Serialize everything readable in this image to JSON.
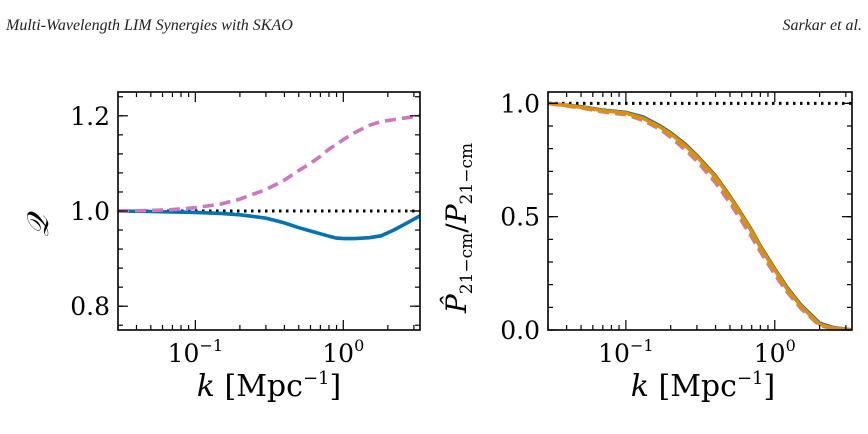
{
  "header": {
    "left": "Multi-Wavelength LIM Synergies with SKAO",
    "right": "Sarkar et al."
  },
  "chart_data": [
    {
      "type": "line",
      "xscale": "log",
      "xlim": [
        0.03,
        3.3
      ],
      "ylim": [
        0.75,
        1.25
      ],
      "xlabel": "k [Mpc^-1]",
      "ylabel": "Q",
      "yticks": [
        0.8,
        1.0,
        1.2
      ],
      "ytick_labels": [
        "0.8",
        "1.0",
        "1.2"
      ],
      "xticks": [
        0.1,
        1.0
      ],
      "xtick_labels": [
        "10^-1",
        "10^0"
      ],
      "grid": false,
      "reference_line": {
        "y": 1.0,
        "style": "dotted",
        "color": "#000000"
      },
      "series": [
        {
          "color": "#0173b2",
          "style": "solid",
          "x": [
            0.03,
            0.05,
            0.07,
            0.1,
            0.15,
            0.2,
            0.3,
            0.4,
            0.5,
            0.6,
            0.7,
            0.8,
            0.9,
            1.0,
            1.2,
            1.5,
            1.8,
            2.2,
            2.7,
            3.3
          ],
          "y": [
            1.0,
            0.999,
            0.998,
            0.997,
            0.995,
            0.992,
            0.985,
            0.975,
            0.965,
            0.958,
            0.952,
            0.947,
            0.943,
            0.942,
            0.942,
            0.944,
            0.948,
            0.96,
            0.975,
            0.99
          ]
        },
        {
          "color": "#cc78bc",
          "style": "dashed",
          "x": [
            0.03,
            0.05,
            0.07,
            0.1,
            0.15,
            0.2,
            0.3,
            0.4,
            0.5,
            0.6,
            0.7,
            0.8,
            0.9,
            1.0,
            1.2,
            1.5,
            1.8,
            2.2,
            2.7,
            3.3
          ],
          "y": [
            1.0,
            1.001,
            1.003,
            1.007,
            1.015,
            1.025,
            1.045,
            1.065,
            1.085,
            1.1,
            1.115,
            1.13,
            1.14,
            1.15,
            1.165,
            1.18,
            1.188,
            1.192,
            1.196,
            1.2
          ]
        }
      ]
    },
    {
      "type": "line",
      "xscale": "log",
      "xlim": [
        0.03,
        3.3
      ],
      "ylim": [
        0.0,
        1.05
      ],
      "xlabel": "k [Mpc^-1]",
      "ylabel": "P̂21-cm/P21-cm",
      "yticks": [
        0.0,
        0.5,
        1.0
      ],
      "ytick_labels": [
        "0.0",
        "0.5",
        "1.0"
      ],
      "xticks": [
        0.1,
        1.0
      ],
      "xtick_labels": [
        "10^-1",
        "10^0"
      ],
      "grid": false,
      "reference_line": {
        "y": 1.0,
        "style": "dotted",
        "color": "#000000"
      },
      "series": [
        {
          "color": "#0173b2",
          "style": "solid",
          "x": [
            0.03,
            0.05,
            0.07,
            0.1,
            0.13,
            0.17,
            0.2,
            0.25,
            0.3,
            0.4,
            0.5,
            0.6,
            0.7,
            0.8,
            1.0,
            1.2,
            1.5,
            2.0,
            2.5,
            3.3
          ],
          "y": [
            1.0,
            0.985,
            0.97,
            0.96,
            0.94,
            0.9,
            0.87,
            0.82,
            0.77,
            0.68,
            0.59,
            0.51,
            0.44,
            0.37,
            0.27,
            0.19,
            0.11,
            0.03,
            0.01,
            0.0
          ]
        },
        {
          "color": "#de8f05",
          "style": "solid",
          "x": [
            0.03,
            0.05,
            0.07,
            0.1,
            0.13,
            0.17,
            0.2,
            0.25,
            0.3,
            0.4,
            0.5,
            0.6,
            0.7,
            0.8,
            1.0,
            1.2,
            1.5,
            2.0,
            2.5,
            3.3
          ],
          "y": [
            1.0,
            0.983,
            0.968,
            0.957,
            0.935,
            0.895,
            0.865,
            0.815,
            0.765,
            0.675,
            0.585,
            0.505,
            0.435,
            0.365,
            0.265,
            0.185,
            0.105,
            0.025,
            0.008,
            0.0
          ]
        },
        {
          "color": "#cc78bc",
          "style": "dashed",
          "x": [
            0.03,
            0.05,
            0.07,
            0.1,
            0.13,
            0.17,
            0.2,
            0.25,
            0.3,
            0.4,
            0.5,
            0.6,
            0.7,
            0.8,
            1.0,
            1.2,
            1.5,
            2.0,
            2.5,
            3.3
          ],
          "y": [
            1.0,
            0.98,
            0.962,
            0.95,
            0.925,
            0.885,
            0.85,
            0.795,
            0.745,
            0.65,
            0.56,
            0.48,
            0.41,
            0.345,
            0.245,
            0.17,
            0.095,
            0.02,
            0.005,
            0.0
          ]
        },
        {
          "color": "#de8f05",
          "style": "dashed",
          "x": [
            0.03,
            0.05,
            0.07,
            0.1,
            0.13,
            0.17,
            0.2,
            0.25,
            0.3,
            0.4,
            0.5,
            0.6,
            0.7,
            0.8,
            1.0,
            1.2,
            1.5,
            2.0,
            2.5,
            3.3
          ],
          "y": [
            1.0,
            0.982,
            0.965,
            0.953,
            0.93,
            0.89,
            0.857,
            0.805,
            0.755,
            0.662,
            0.572,
            0.492,
            0.422,
            0.355,
            0.255,
            0.177,
            0.1,
            0.022,
            0.006,
            0.0
          ]
        }
      ]
    }
  ]
}
